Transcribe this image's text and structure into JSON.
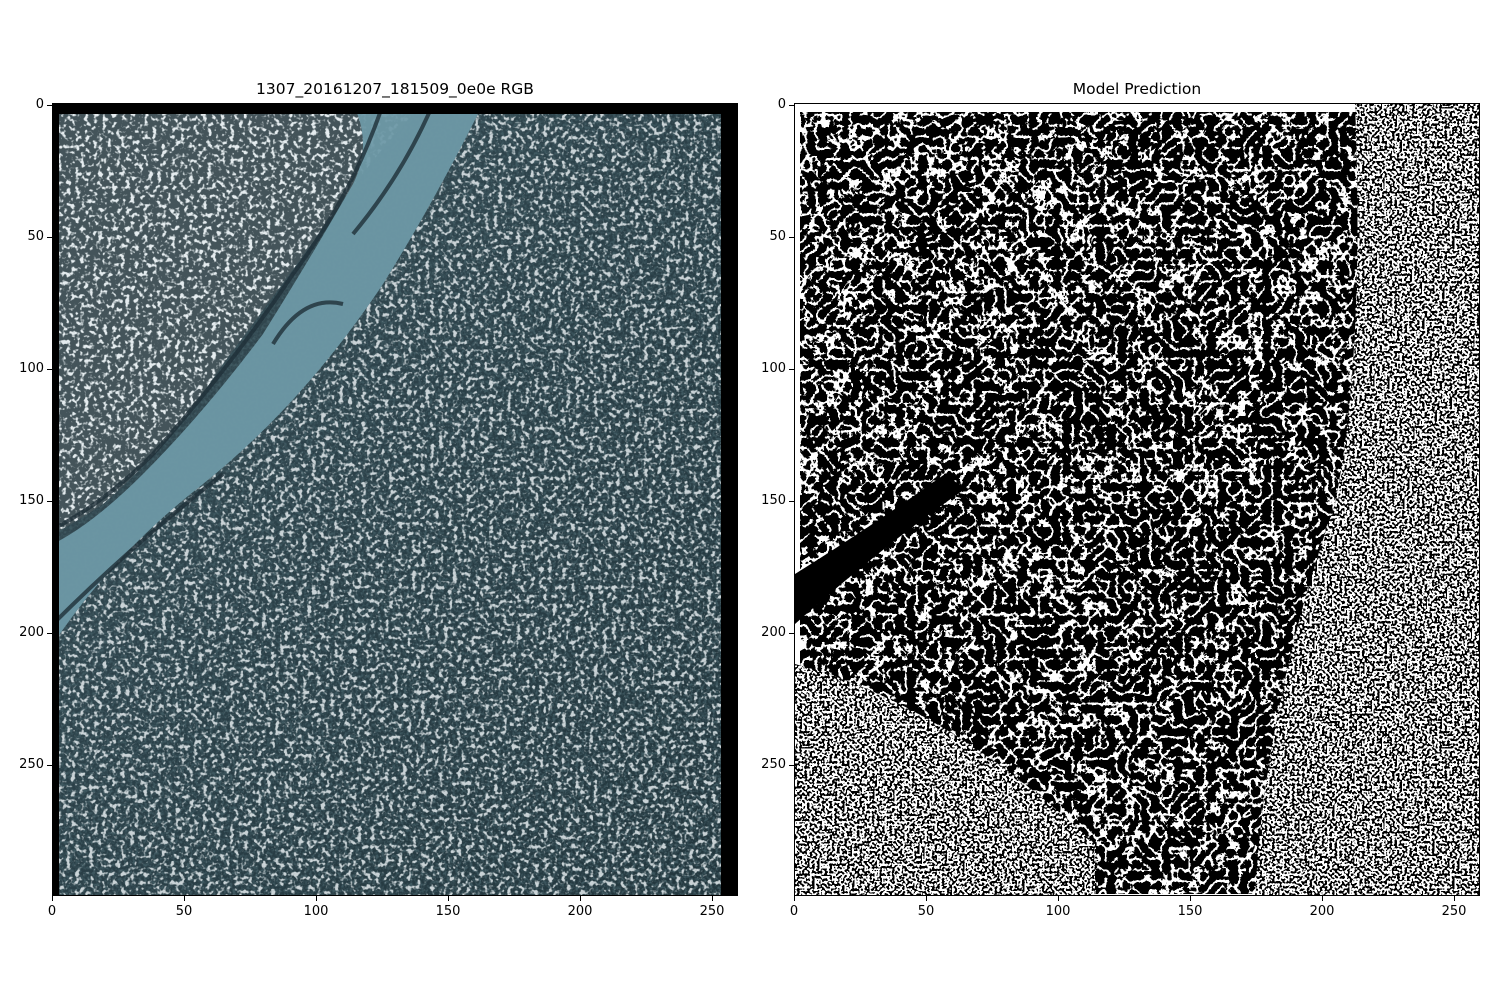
{
  "figure": {
    "panels": [
      {
        "title": "1307_20161207_181509_0e0e RGB",
        "image_kind": "satellite-rgb",
        "x_ticks": [
          "0",
          "50",
          "100",
          "150",
          "200",
          "250"
        ],
        "y_ticks": [
          "0",
          "50",
          "100",
          "150",
          "200",
          "250"
        ]
      },
      {
        "title": "Model Prediction",
        "image_kind": "binary-mask",
        "x_ticks": [
          "0",
          "50",
          "100",
          "150",
          "200",
          "250"
        ],
        "y_ticks": [
          "0",
          "50",
          "100",
          "150",
          "200",
          "250"
        ]
      }
    ],
    "colors": {
      "water": "#6f9aa8",
      "canopy_dark": "#243840",
      "canopy_light": "#c8d4d6",
      "mask_on": "#ffffff",
      "mask_off": "#000000",
      "nodata": "#000000"
    }
  }
}
